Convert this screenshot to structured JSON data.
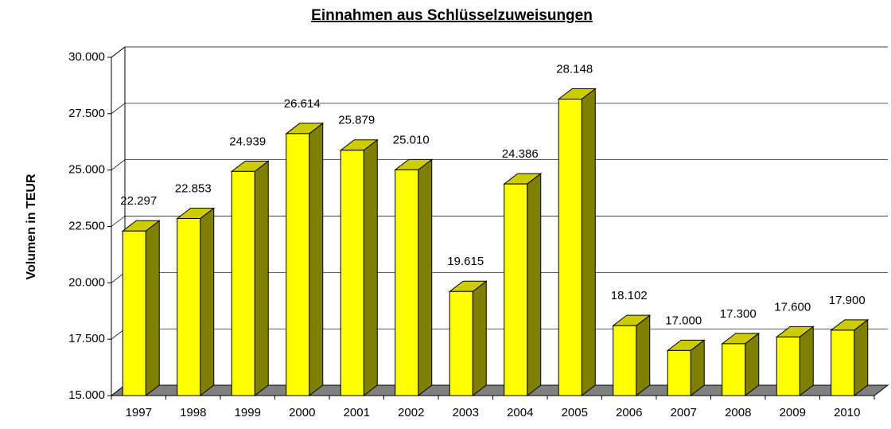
{
  "chart_data": {
    "type": "bar3d",
    "title": "Einnahmen aus Schlüsselzuweisungen",
    "y_label": "Volumen in TEUR",
    "categories": [
      "1997",
      "1998",
      "1999",
      "2000",
      "2001",
      "2002",
      "2003",
      "2004",
      "2005",
      "2006",
      "2007",
      "2008",
      "2009",
      "2010"
    ],
    "values": [
      22297,
      22853,
      24939,
      26614,
      25879,
      25010,
      19615,
      24386,
      28148,
      18102,
      17000,
      17300,
      17600,
      17900
    ],
    "value_labels": [
      "22.297",
      "22.853",
      "24.939",
      "26.614",
      "25.879",
      "25.010",
      "19.615",
      "24.386",
      "28.148",
      "18.102",
      "17.000",
      "17.300",
      "17.600",
      "17.900"
    ],
    "color": "#ffff00",
    "ylim": [
      15000,
      30000
    ],
    "yticks": [
      {
        "value": 15000,
        "label": "15.000"
      },
      {
        "value": 17500,
        "label": "17.500"
      },
      {
        "value": 20000,
        "label": "20.000"
      },
      {
        "value": 22500,
        "label": "22.500"
      },
      {
        "value": 25000,
        "label": "25.000"
      },
      {
        "value": 27500,
        "label": "27.500"
      },
      {
        "value": 30000,
        "label": "30.000"
      }
    ],
    "grid": true
  }
}
